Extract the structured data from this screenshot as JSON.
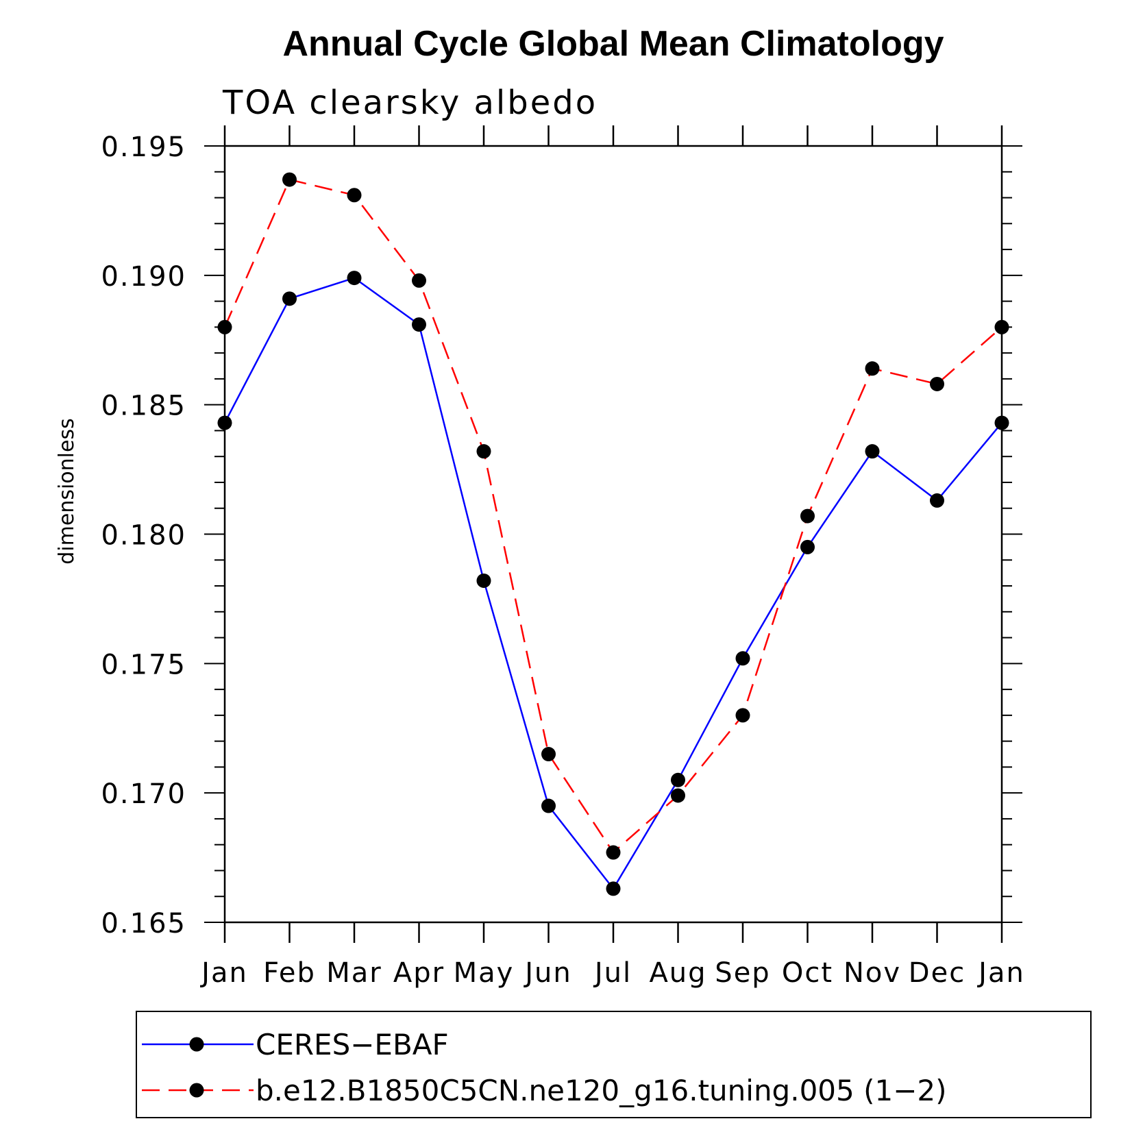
{
  "chart_data": {
    "type": "line",
    "title": "Annual Cycle Global Mean Climatology",
    "subtitle": "TOA clearsky albedo",
    "ylabel": "dimensionless",
    "xlabel": "",
    "categories": [
      "Jan",
      "Feb",
      "Mar",
      "Apr",
      "May",
      "Jun",
      "Jul",
      "Aug",
      "Sep",
      "Oct",
      "Nov",
      "Dec",
      "Jan"
    ],
    "ylim": [
      0.165,
      0.195
    ],
    "yticks": [
      "0.165",
      "0.170",
      "0.175",
      "0.180",
      "0.185",
      "0.190",
      "0.195"
    ],
    "series": [
      {
        "name": "CERES−EBAF",
        "color": "#0000ff",
        "dash": "solid",
        "values": [
          0.1843,
          0.1891,
          0.1899,
          0.1881,
          0.1782,
          0.1695,
          0.1663,
          0.1705,
          0.1752,
          0.1795,
          0.1832,
          0.1813,
          0.1843
        ]
      },
      {
        "name": "b.e12.B1850C5CN.ne120_g16.tuning.005 (1−2)",
        "color": "#ff0000",
        "dash": "dashed",
        "values": [
          0.188,
          0.1937,
          0.1931,
          0.1898,
          0.1832,
          0.1715,
          0.1677,
          0.1699,
          0.173,
          0.1807,
          0.1864,
          0.1858,
          0.188
        ]
      }
    ],
    "grid": false,
    "legend_position": "bottom"
  }
}
